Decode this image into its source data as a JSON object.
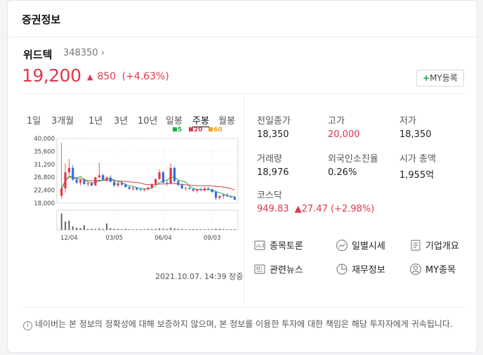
{
  "header": {
    "title": "증권정보"
  },
  "stock": {
    "name": "위드텍",
    "code": "348350",
    "code_arrow": "›",
    "price": "19,200",
    "change_symbol": "▲",
    "change_value": "850",
    "change_pct": "(+4.63%)",
    "my_button": "MY등록",
    "my_plus": "+"
  },
  "periods": [
    "1일",
    "3개월",
    "1년",
    "3년",
    "10년",
    "일봉",
    "주봉",
    "월봉"
  ],
  "active_period": "주봉",
  "legend": [
    {
      "label": "5",
      "color": "#22a94a"
    },
    {
      "label": "20",
      "color": "#e0364a"
    },
    {
      "label": "60",
      "color": "#f0a020"
    }
  ],
  "chart_data": {
    "type": "candlestick",
    "y_ticks": [
      "40,000",
      "35,600",
      "31,200",
      "26,800",
      "22,400",
      "18,000"
    ],
    "ylim": [
      18000,
      40000
    ],
    "x_ticks": [
      "12/04",
      "03/05",
      "06/04",
      "09/03"
    ],
    "candles": [
      [
        20500,
        38500,
        19500,
        23000
      ],
      [
        23000,
        31500,
        21500,
        28500
      ],
      [
        28500,
        33000,
        27500,
        30000
      ],
      [
        30000,
        31000,
        25500,
        26000
      ],
      [
        26000,
        27000,
        24500,
        25000
      ],
      [
        25000,
        26500,
        24000,
        25800
      ],
      [
        25800,
        26200,
        24200,
        24500
      ],
      [
        24500,
        25000,
        23500,
        24700
      ],
      [
        24700,
        25200,
        23800,
        24000
      ],
      [
        24000,
        27000,
        23900,
        26800
      ],
      [
        26800,
        31800,
        26500,
        27500
      ],
      [
        27500,
        28000,
        25500,
        26000
      ],
      [
        26000,
        27200,
        25200,
        26700
      ],
      [
        26700,
        27500,
        25000,
        25300
      ],
      [
        25300,
        25800,
        23500,
        24000
      ],
      [
        24000,
        25200,
        23200,
        24800
      ],
      [
        24800,
        25500,
        24000,
        24300
      ],
      [
        24300,
        24800,
        23200,
        23500
      ],
      [
        23500,
        24000,
        22500,
        22900
      ],
      [
        22900,
        23600,
        22200,
        23200
      ],
      [
        23200,
        23500,
        22300,
        22600
      ],
      [
        22600,
        23400,
        22200,
        22500
      ],
      [
        22500,
        23000,
        22000,
        22800
      ],
      [
        22800,
        23500,
        22300,
        23300
      ],
      [
        23300,
        24800,
        23100,
        24500
      ],
      [
        24500,
        26500,
        24200,
        26200
      ],
      [
        26200,
        29500,
        25800,
        28500
      ],
      [
        28500,
        29000,
        24500,
        25000
      ],
      [
        25000,
        26000,
        23800,
        24800
      ],
      [
        24800,
        31500,
        24500,
        30000
      ],
      [
        30000,
        30500,
        25000,
        25500
      ],
      [
        25500,
        26000,
        23800,
        24200
      ],
      [
        24200,
        24800,
        22800,
        23000
      ],
      [
        23000,
        23500,
        22400,
        23100
      ],
      [
        23100,
        23600,
        22500,
        22800
      ],
      [
        22800,
        23200,
        21800,
        22200
      ],
      [
        22200,
        22900,
        21500,
        22600
      ],
      [
        22600,
        23300,
        22200,
        22400
      ],
      [
        22400,
        23400,
        22000,
        23000
      ],
      [
        23000,
        23500,
        22400,
        22700
      ],
      [
        22700,
        23000,
        21500,
        21800
      ],
      [
        21800,
        22200,
        19200,
        19800
      ],
      [
        19800,
        20800,
        19000,
        20400
      ],
      [
        20400,
        21000,
        19600,
        20800
      ],
      [
        20800,
        21500,
        20200,
        20300
      ],
      [
        20300,
        20700,
        19700,
        20100
      ],
      [
        20100,
        20400,
        19000,
        19200
      ]
    ],
    "volume": [
      0.9,
      0.45,
      0.5,
      0.2,
      0.12,
      0.1,
      0.25,
      0.05,
      0.06,
      0.05,
      0.08,
      0.05,
      0.35,
      0.1,
      0.06,
      0.05,
      0.04,
      0.05,
      0.04,
      0.03,
      0.03,
      0.04,
      0.03,
      0.05,
      0.05,
      0.06,
      0.08,
      0.07,
      0.05,
      0.12,
      0.09,
      0.05,
      0.04,
      0.03,
      0.03,
      0.04,
      0.04,
      0.03,
      0.03,
      0.03,
      0.03,
      0.06,
      0.05,
      0.04,
      0.03,
      0.03,
      0.04
    ]
  },
  "timestamp": "2021.10.07. 14:39 장중",
  "stats": [
    {
      "label": "전일종가",
      "value": "18,350",
      "red": false
    },
    {
      "label": "고가",
      "value": "20,000",
      "red": true
    },
    {
      "label": "저가",
      "value": "18,350",
      "red": false
    },
    {
      "label": "거래량",
      "value": "18,976",
      "red": false
    },
    {
      "label": "외국인소진율",
      "value": "0.26%",
      "red": false
    },
    {
      "label": "시가 총액",
      "value": "1,955억",
      "red": false
    }
  ],
  "index": {
    "label": "코스닥",
    "value": "949.83",
    "change": "▲27.47 (+2.98%)"
  },
  "links": [
    {
      "label": "종목토론",
      "icon": "chart-board-icon"
    },
    {
      "label": "일별시세",
      "icon": "trend-circle-icon"
    },
    {
      "label": "기업개요",
      "icon": "document-list-icon"
    },
    {
      "label": "관련뉴스",
      "icon": "news-icon"
    },
    {
      "label": "재무정보",
      "icon": "pie-chart-icon"
    },
    {
      "label": "MY종목",
      "icon": "user-circle-icon"
    }
  ],
  "notice": "네이버는 본 정보의 정확성에 대해 보증하지 않으며, 본 정보를 이용한 투자에 대한 책임은 해당 투자자에게 귀속됩니다."
}
